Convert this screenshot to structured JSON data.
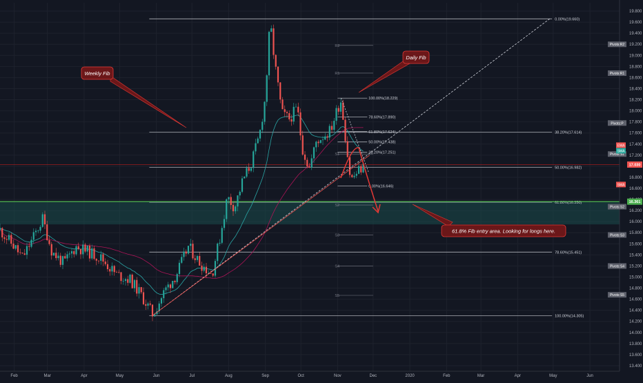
{
  "colors": {
    "background": "#131722",
    "up": "#26a69a",
    "down": "#ef5350",
    "ema": "#f05a6b",
    "sma": "#ad1457",
    "ma_cyan": "#2aa6a6",
    "fib_line": "#c9ccd3",
    "pivot_line": "#787b86",
    "zone": "#1a4a4a",
    "green_line": "#4caf50",
    "red_line": "#b71c1c",
    "note_bg": "#6b1719",
    "note_border": "#e53935",
    "arrow": "#e53935"
  },
  "chart_data": {
    "type": "candlestick",
    "title": "",
    "ylim": [
      13.3,
      19.95
    ],
    "y_ticks": [
      "19.800",
      "19.600",
      "19.400",
      "19.200",
      "19.000",
      "18.800",
      "18.600",
      "18.400",
      "18.200",
      "18.000",
      "17.800",
      "17.600",
      "17.400",
      "17.200",
      "17.000",
      "16.800",
      "16.600",
      "16.400",
      "16.200",
      "16.000",
      "15.800",
      "15.600",
      "15.400",
      "15.200",
      "15.000",
      "14.800",
      "14.600",
      "14.400",
      "14.200",
      "14.000",
      "13.800",
      "13.600",
      "13.400"
    ],
    "x_ticks": [
      "Feb",
      "Mar",
      "Apr",
      "May",
      "Jun",
      "Jul",
      "Aug",
      "Sep",
      "Oct",
      "Nov",
      "Dec",
      "2020",
      "Feb",
      "Mar",
      "Apr",
      "May",
      "Jun"
    ],
    "x_tick_dates": [
      "2019-02-01",
      "2019-03-01",
      "2019-04-01",
      "2019-05-01",
      "2019-06-01",
      "2019-07-01",
      "2019-08-01",
      "2019-09-01",
      "2019-10-01",
      "2019-11-01",
      "2019-12-01",
      "2020-01-01",
      "2020-02-01",
      "2020-03-01",
      "2020-04-01",
      "2020-05-01",
      "2020-06-01"
    ],
    "price_path": [
      {
        "date": "2019-01-20",
        "close": 15.85
      },
      {
        "date": "2019-02-01",
        "close": 15.55
      },
      {
        "date": "2019-02-08",
        "close": 15.35
      },
      {
        "date": "2019-02-18",
        "close": 15.75
      },
      {
        "date": "2019-02-25",
        "close": 16.05
      },
      {
        "date": "2019-03-05",
        "close": 15.45
      },
      {
        "date": "2019-03-15",
        "close": 15.25
      },
      {
        "date": "2019-03-25",
        "close": 15.55
      },
      {
        "date": "2019-04-05",
        "close": 15.45
      },
      {
        "date": "2019-04-15",
        "close": 15.35
      },
      {
        "date": "2019-04-28",
        "close": 15.05
      },
      {
        "date": "2019-05-10",
        "close": 14.95
      },
      {
        "date": "2019-05-20",
        "close": 14.65
      },
      {
        "date": "2019-05-29",
        "close": 14.32
      },
      {
        "date": "2019-06-08",
        "close": 14.75
      },
      {
        "date": "2019-06-18",
        "close": 15.05
      },
      {
        "date": "2019-06-28",
        "close": 15.55
      },
      {
        "date": "2019-07-08",
        "close": 15.25
      },
      {
        "date": "2019-07-18",
        "close": 15.05
      },
      {
        "date": "2019-07-25",
        "close": 15.75
      },
      {
        "date": "2019-07-31",
        "close": 16.45
      },
      {
        "date": "2019-08-06",
        "close": 16.25
      },
      {
        "date": "2019-08-13",
        "close": 16.75
      },
      {
        "date": "2019-08-20",
        "close": 17.05
      },
      {
        "date": "2019-08-27",
        "close": 17.55
      },
      {
        "date": "2019-09-01",
        "close": 18.25
      },
      {
        "date": "2019-09-05",
        "close": 19.62
      },
      {
        "date": "2019-09-09",
        "close": 18.85
      },
      {
        "date": "2019-09-15",
        "close": 17.95
      },
      {
        "date": "2019-09-21",
        "close": 17.85
      },
      {
        "date": "2019-09-28",
        "close": 18.05
      },
      {
        "date": "2019-10-02",
        "close": 17.35
      },
      {
        "date": "2019-10-08",
        "close": 16.95
      },
      {
        "date": "2019-10-14",
        "close": 17.45
      },
      {
        "date": "2019-10-20",
        "close": 17.55
      },
      {
        "date": "2019-10-26",
        "close": 17.65
      },
      {
        "date": "2019-11-01",
        "close": 18.05
      },
      {
        "date": "2019-11-04",
        "close": 18.2
      },
      {
        "date": "2019-11-08",
        "close": 17.45
      },
      {
        "date": "2019-11-12",
        "close": 16.75
      },
      {
        "date": "2019-11-16",
        "close": 16.85
      },
      {
        "date": "2019-11-20",
        "close": 16.95
      },
      {
        "date": "2019-11-24",
        "close": 17.0
      }
    ],
    "weekly_fib_levels": [
      {
        "label": "0.00%(19.660)",
        "price": 19.66
      },
      {
        "label": "38.20%(17.614)",
        "price": 17.614
      },
      {
        "label": "50.00%(16.982)",
        "price": 16.982
      },
      {
        "label": "61.80%(16.350)",
        "price": 16.35
      },
      {
        "label": "78.60%(15.451)",
        "price": 15.451
      },
      {
        "label": "100.00%(14.305)",
        "price": 14.305
      }
    ],
    "daily_fib_levels": [
      {
        "label": "100.00%(18.229)",
        "price": 18.229
      },
      {
        "label": "78.60%(17.890)",
        "price": 17.89
      },
      {
        "label": "61.80%(17.624)",
        "price": 17.624
      },
      {
        "label": "50.00%(17.438)",
        "price": 17.438
      },
      {
        "label": "38.20%(17.251)",
        "price": 17.251
      },
      {
        "label": "0.00%(16.646)",
        "price": 16.646
      }
    ],
    "pivot_levels": [
      {
        "label": "R2",
        "price": 19.18
      },
      {
        "label": "R1",
        "price": 18.68
      },
      {
        "label": "S1",
        "price": 17.22
      },
      {
        "label": "S2",
        "price": 16.3
      },
      {
        "label": "S3",
        "price": 15.76
      },
      {
        "label": "S4",
        "price": 15.2
      },
      {
        "label": "S5",
        "price": 14.67
      }
    ],
    "pivot_tags": [
      {
        "label": "Pivots:R2",
        "price": 19.2
      },
      {
        "label": "Pivots:R1",
        "price": 18.68
      },
      {
        "label": "Pivots:P",
        "price": 17.78
      },
      {
        "label": "Pivots:S1",
        "price": 17.22
      },
      {
        "label": "Pivots:S2",
        "price": 16.27
      },
      {
        "label": "Pivots:S3",
        "price": 15.76
      },
      {
        "label": "Pivots:S4",
        "price": 15.2
      },
      {
        "label": "Pivots:S5",
        "price": 14.68
      }
    ],
    "indicator_tags": [
      {
        "label": "EMA",
        "price": 17.38,
        "color": "#ef5350"
      },
      {
        "label": "SMA",
        "price": 17.28,
        "color": "#26a69a"
      },
      {
        "label": "SMA",
        "price": 16.67,
        "color": "#ef5350"
      }
    ],
    "current_price": {
      "label": "17.030",
      "price": 17.03
    },
    "green_level": {
      "label": "16.361",
      "price": 16.361
    },
    "entry_zone": {
      "top": 16.35,
      "bottom": 15.95
    },
    "annotations": {
      "weekly": "Weekly Fib",
      "daily": "Daily Fib",
      "entry": "61.8% Fib entry area. Looking for longs here."
    }
  }
}
